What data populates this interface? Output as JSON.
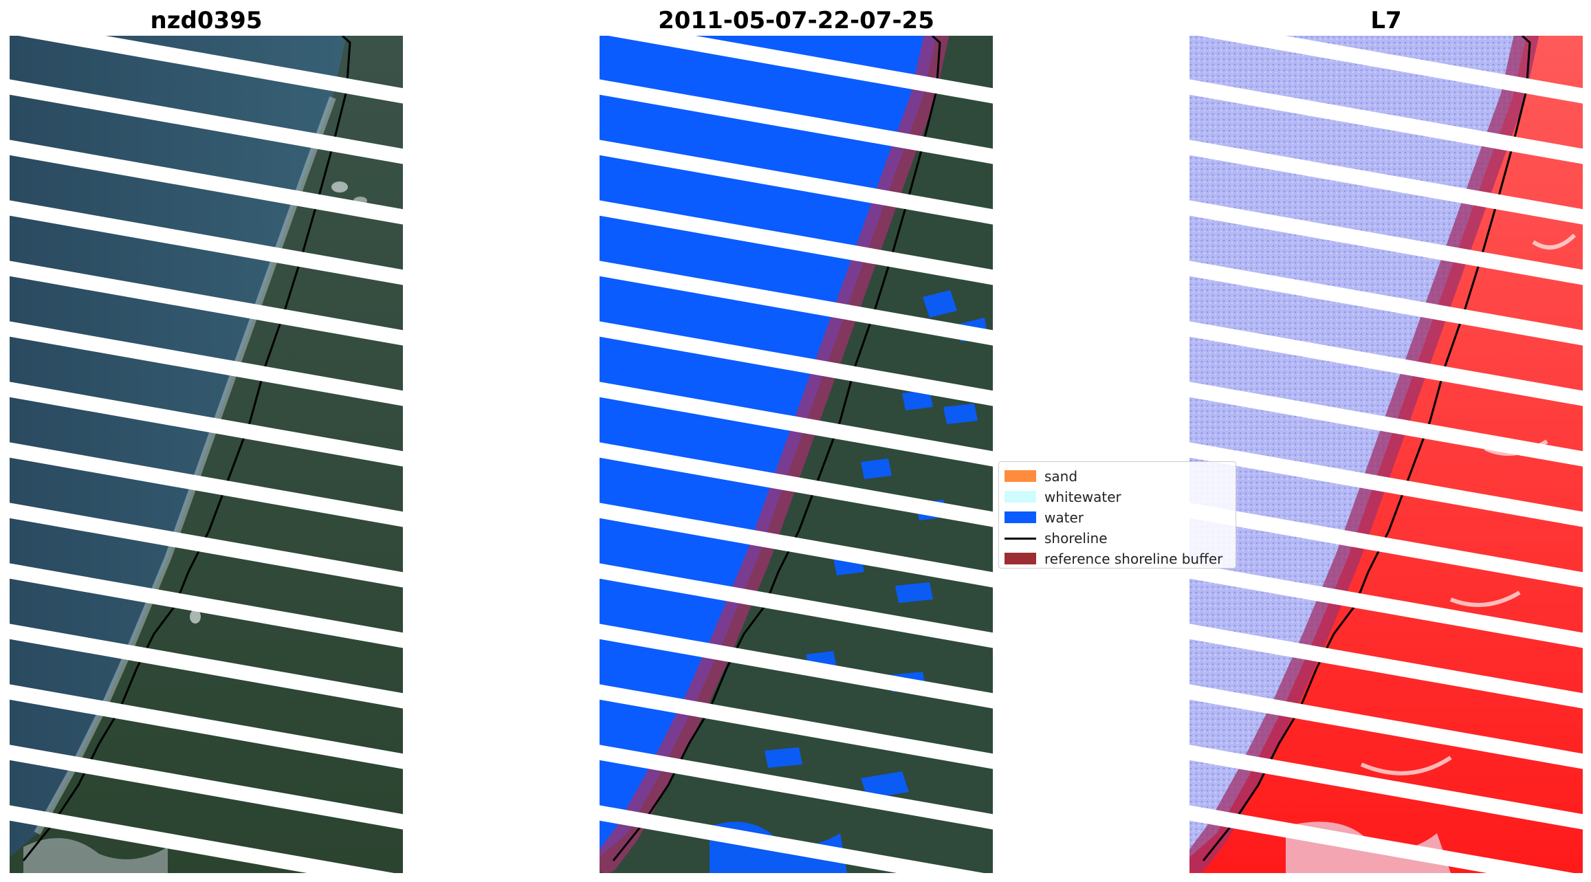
{
  "titles": {
    "left": "nzd0395",
    "middle": "2011-05-07-22-07-25",
    "right": "L7"
  },
  "panels": {
    "left": "RGB satellite image with detected shoreline",
    "middle": "Classified image (sand, whitewater, water) with shoreline and reference buffer",
    "right": "Water index image with shoreline and reference buffer"
  },
  "legend": {
    "items": [
      {
        "label": "sand",
        "color": "#ff8c3c",
        "kind": "patch"
      },
      {
        "label": "whitewater",
        "color": "#cffcff",
        "kind": "patch"
      },
      {
        "label": "water",
        "color": "#0a5cff",
        "kind": "patch"
      },
      {
        "label": "shoreline",
        "color": "#000000",
        "kind": "line"
      },
      {
        "label": "reference shoreline buffer",
        "color": "#9b2d33",
        "kind": "patch"
      }
    ]
  },
  "colors": {
    "ocean": "#2b4d63",
    "land": "#2f4a3a",
    "water_class": "#0a5cff",
    "buffer": "#a0316b",
    "index_water": "#aab0f0",
    "index_land": "#ff3030"
  }
}
